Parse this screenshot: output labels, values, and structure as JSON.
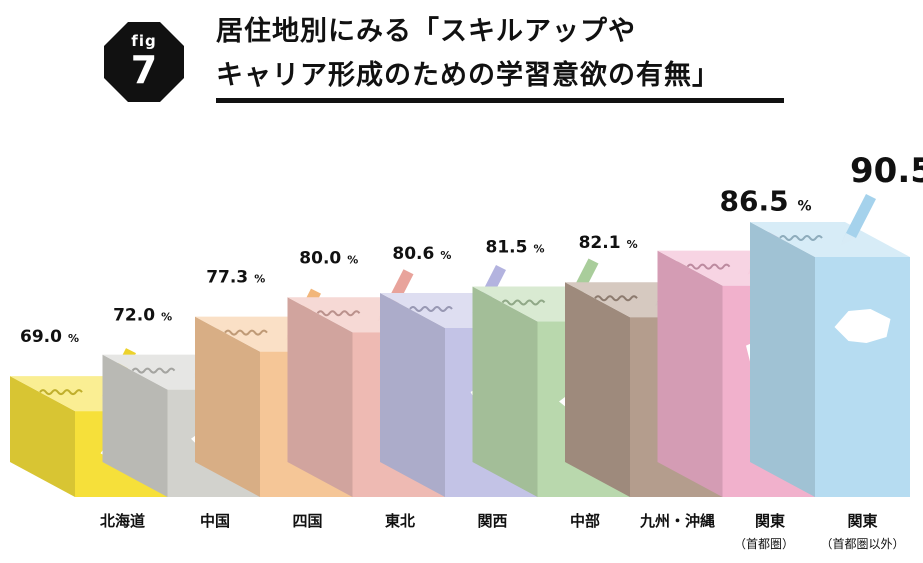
{
  "figure": {
    "label": "fig",
    "number": "7"
  },
  "title_lines": [
    "居住地別にみる「スキルアップや",
    "キャリア形成のための学習意欲の有無」"
  ],
  "chart_data": {
    "type": "bar",
    "categories": [
      "北海道",
      "中国",
      "四国",
      "東北",
      "関西",
      "中部",
      "九州・沖縄",
      "関東",
      "関東"
    ],
    "category_sub": [
      "",
      "",
      "",
      "",
      "",
      "",
      "",
      "（首都圏）",
      "（首都圏以外）"
    ],
    "values": [
      69.0,
      72.0,
      77.3,
      80.0,
      80.6,
      81.5,
      82.1,
      86.5,
      90.5
    ],
    "value_labels": [
      "69.0",
      "72.0",
      "77.3",
      "80.0",
      "80.6",
      "81.5",
      "82.1",
      "86.5",
      "90.5"
    ],
    "unit": "%",
    "colors": [
      "#f6e03a",
      "#d2d2cd",
      "#f5c697",
      "#eebab3",
      "#c3c3e6",
      "#b9d8ad",
      "#b49d8d",
      "#f1b1cc",
      "#b6dcf1"
    ],
    "pencil_colors": [
      "#ecd22c",
      "#c5c5c0",
      "#f2b67a",
      "#e8a39b",
      "#b3b3df",
      "#a9cd9b",
      "#9b8170",
      "#ea93b8",
      "#a5d2ec"
    ],
    "region_icons": [
      "hokkaido-shape-icon",
      "chugoku-shape-icon",
      "shikoku-shape-icon",
      "tohoku-shape-icon",
      "kansai-shape-icon",
      "chubu-shape-icon",
      "kyushu-okinawa-shape-icon",
      "kanto-capital-shape-icon",
      "kanto-other-shape-icon"
    ],
    "title": "居住地別にみる「スキルアップやキャリア形成のための学習意欲の有無」",
    "xlabel": "",
    "ylabel": ""
  }
}
